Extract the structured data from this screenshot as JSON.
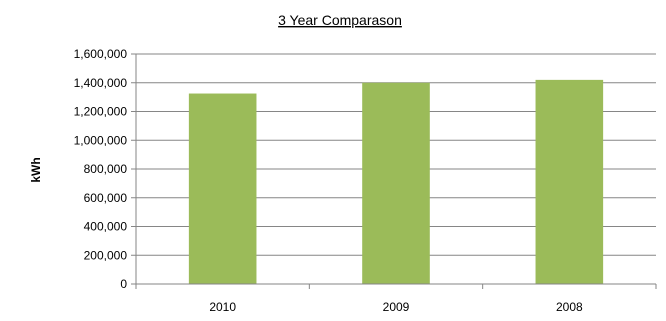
{
  "chart_data": {
    "type": "bar",
    "title": "3 Year Comparason",
    "xlabel": "",
    "ylabel": "kWh",
    "categories": [
      "2010",
      "2009",
      "2008"
    ],
    "values": [
      1325000,
      1400000,
      1420000
    ],
    "ylim": [
      0,
      1600000
    ],
    "yticks": [
      0,
      200000,
      400000,
      600000,
      800000,
      1000000,
      1200000,
      1400000,
      1600000
    ],
    "ytick_labels": [
      "0",
      "200,000",
      "400,000",
      "600,000",
      "800,000",
      "1,000,000",
      "1,200,000",
      "1,400,000",
      "1,600,000"
    ],
    "grid": true,
    "legend": "none",
    "bar_color": "#9BBB59",
    "grid_color": "#868686"
  }
}
